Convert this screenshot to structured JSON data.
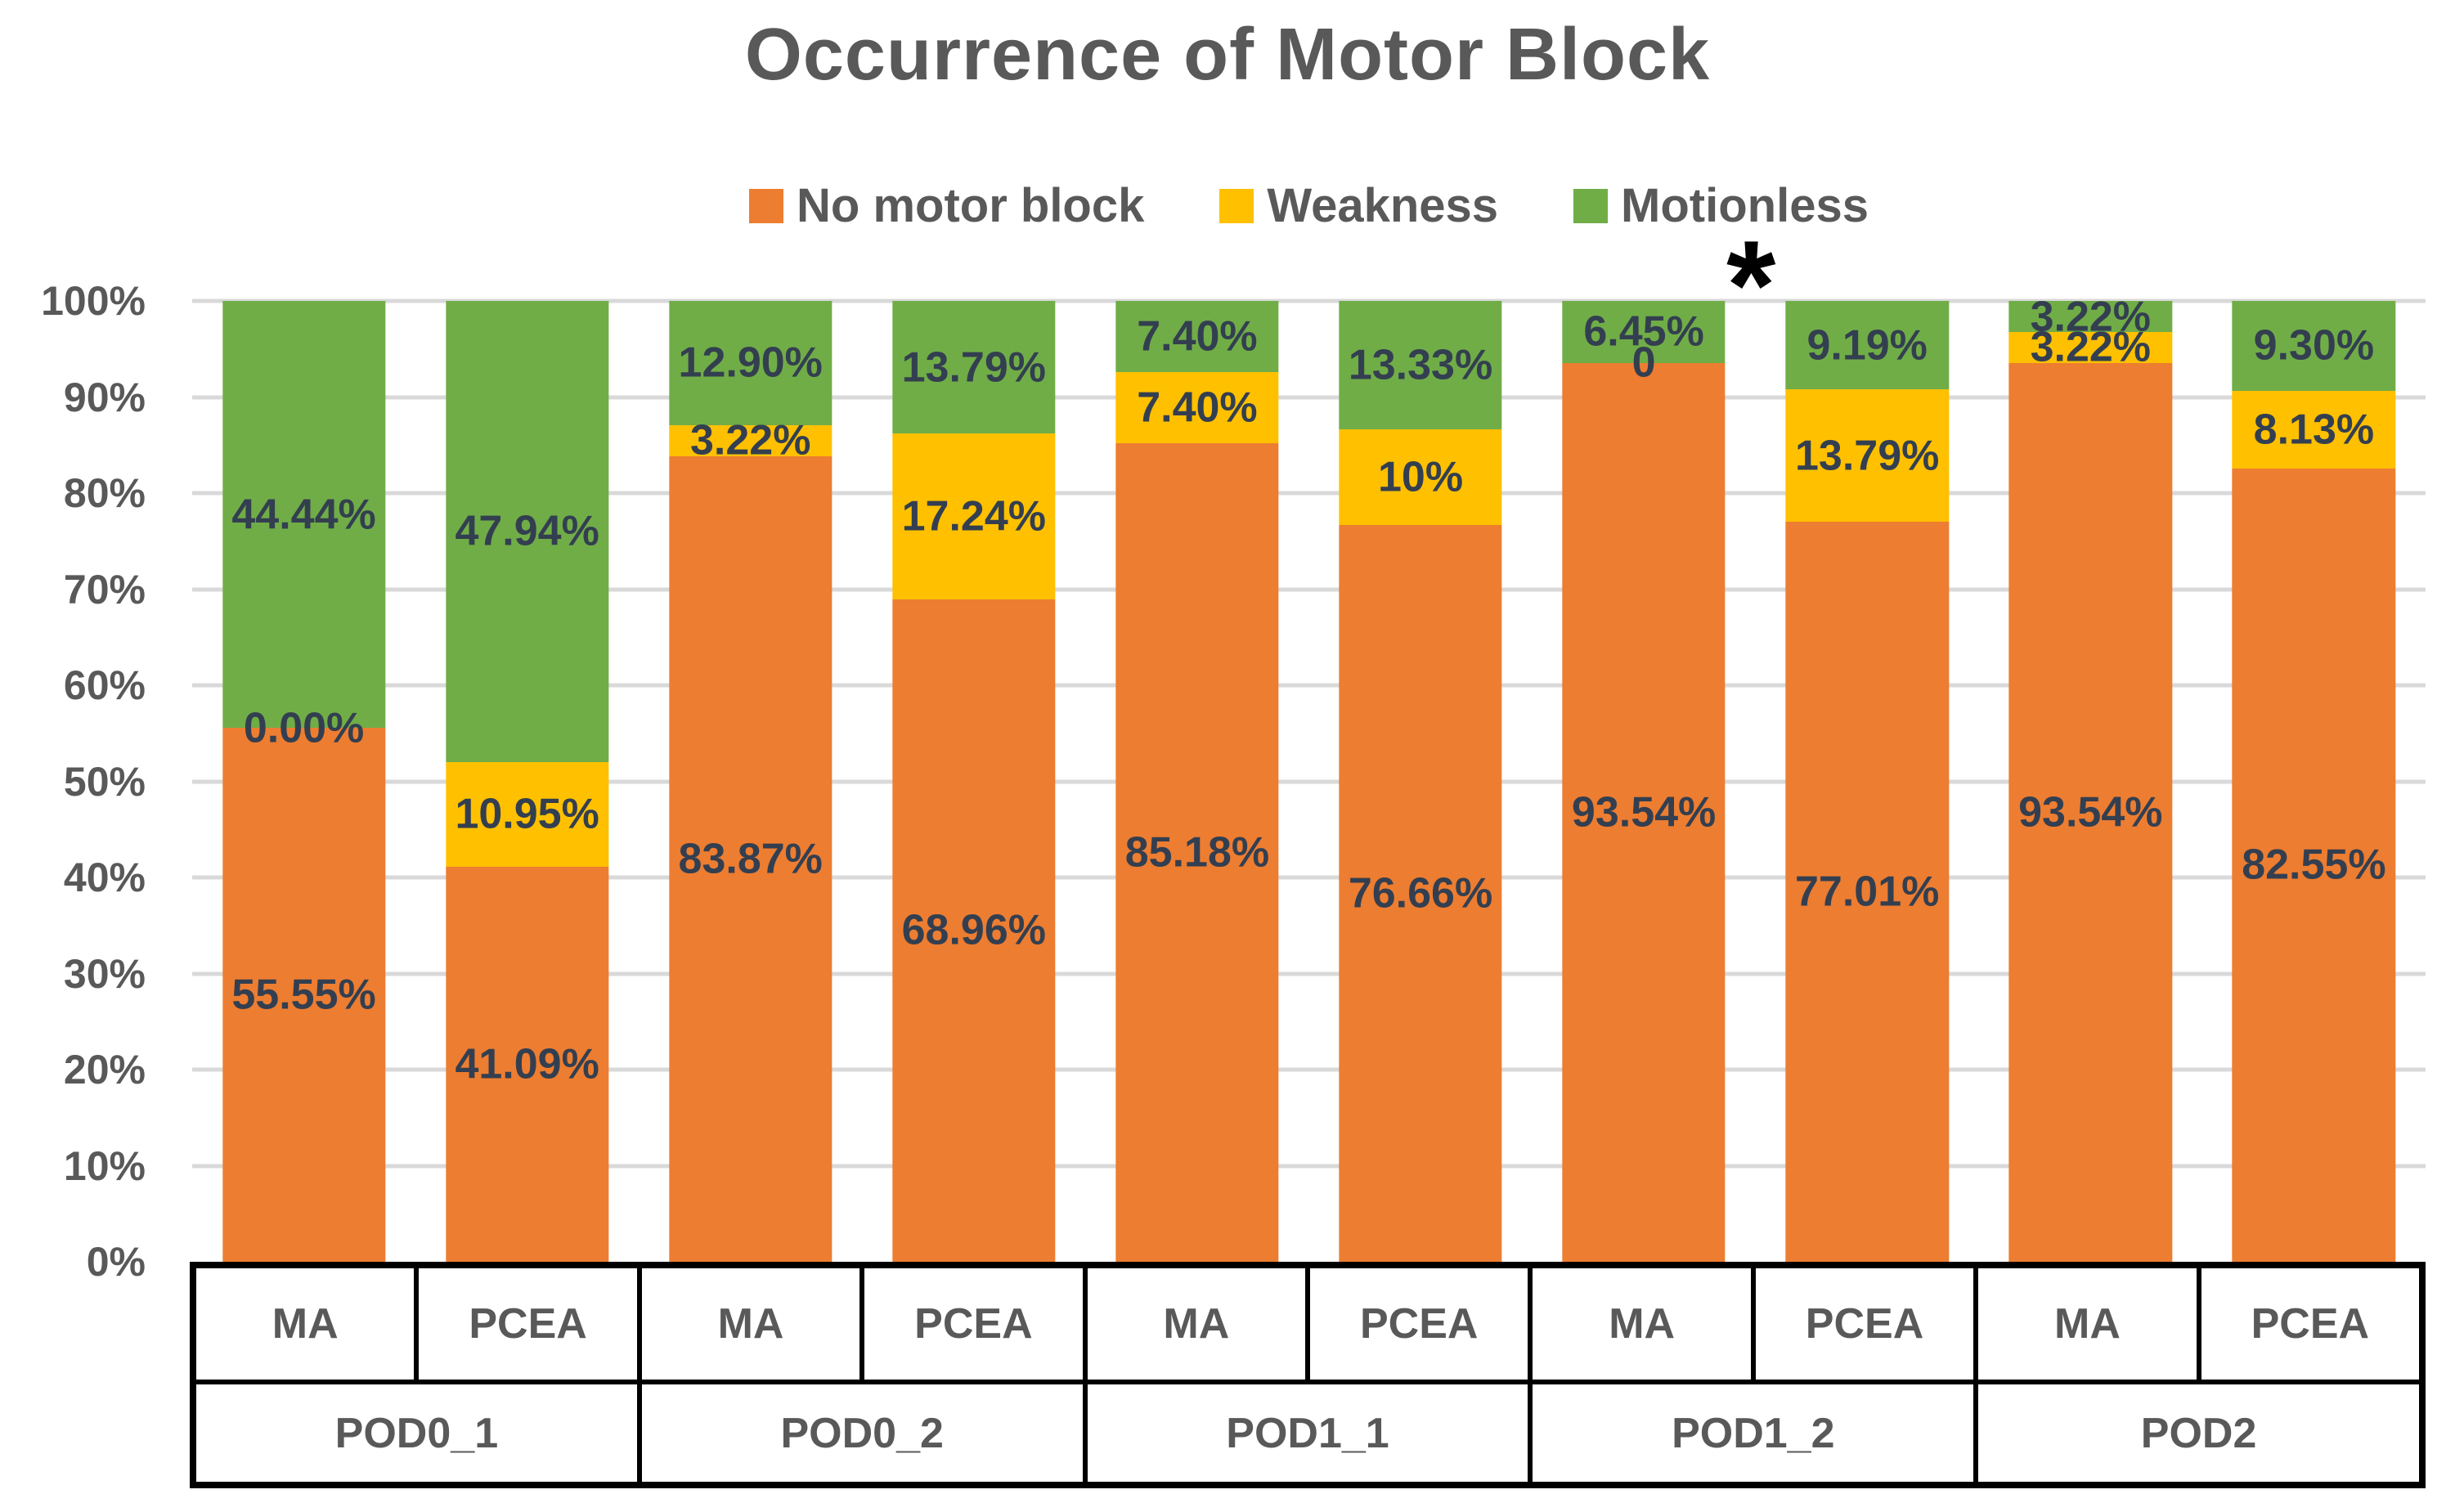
{
  "title": "Occurrence of Motor Block",
  "legend": [
    {
      "label": "No motor block",
      "color": "#ED7D31"
    },
    {
      "label": "Weakness",
      "color": "#FFC000"
    },
    {
      "label": "Motionless",
      "color": "#70AD47"
    }
  ],
  "annotation": {
    "symbol": "*",
    "above_group": "POD1_2",
    "above_bar": "MA"
  },
  "y_axis": {
    "ticks": [
      "100%",
      "90%",
      "80%",
      "70%",
      "60%",
      "50%",
      "40%",
      "30%",
      "20%",
      "10%",
      "0%"
    ]
  },
  "chart_data": {
    "type": "bar",
    "stacked": true,
    "percent_stacked": true,
    "title": "Occurrence of Motor Block",
    "xlabel": "",
    "ylabel": "",
    "ylim": [
      0,
      100
    ],
    "grid": "horizontal",
    "legend_position": "top",
    "groups": [
      "POD0_1",
      "POD0_2",
      "POD1_1",
      "POD1_2",
      "POD2"
    ],
    "bars_per_group": [
      "MA",
      "PCEA"
    ],
    "series": [
      {
        "name": "No motor block",
        "color": "#ED7D31",
        "values": [
          55.55,
          41.09,
          83.87,
          68.96,
          85.18,
          76.66,
          93.54,
          77.01,
          93.54,
          82.55
        ],
        "labels": [
          "55.55%",
          "41.09%",
          "83.87%",
          "68.96%",
          "85.18%",
          "76.66%",
          "93.54%",
          "77.01%",
          "93.54%",
          "82.55%"
        ]
      },
      {
        "name": "Weakness",
        "color": "#FFC000",
        "values": [
          0,
          10.95,
          3.22,
          17.24,
          7.4,
          10,
          0,
          13.79,
          3.22,
          8.13
        ],
        "labels": [
          "0.00%",
          "10.95%",
          "3.22%",
          "17.24%",
          "7.40%",
          "10%",
          "0",
          "13.79%",
          "3.22%",
          "8.13%"
        ]
      },
      {
        "name": "Motionless",
        "color": "#70AD47",
        "values": [
          44.44,
          47.94,
          12.9,
          13.79,
          7.4,
          13.33,
          6.45,
          9.19,
          3.22,
          9.3
        ],
        "labels": [
          "44.44%",
          "47.94%",
          "12.90%",
          "13.79%",
          "7.40%",
          "13.33%",
          "6.45%",
          "9.19%",
          "3.22%",
          "9.30%"
        ]
      }
    ]
  }
}
